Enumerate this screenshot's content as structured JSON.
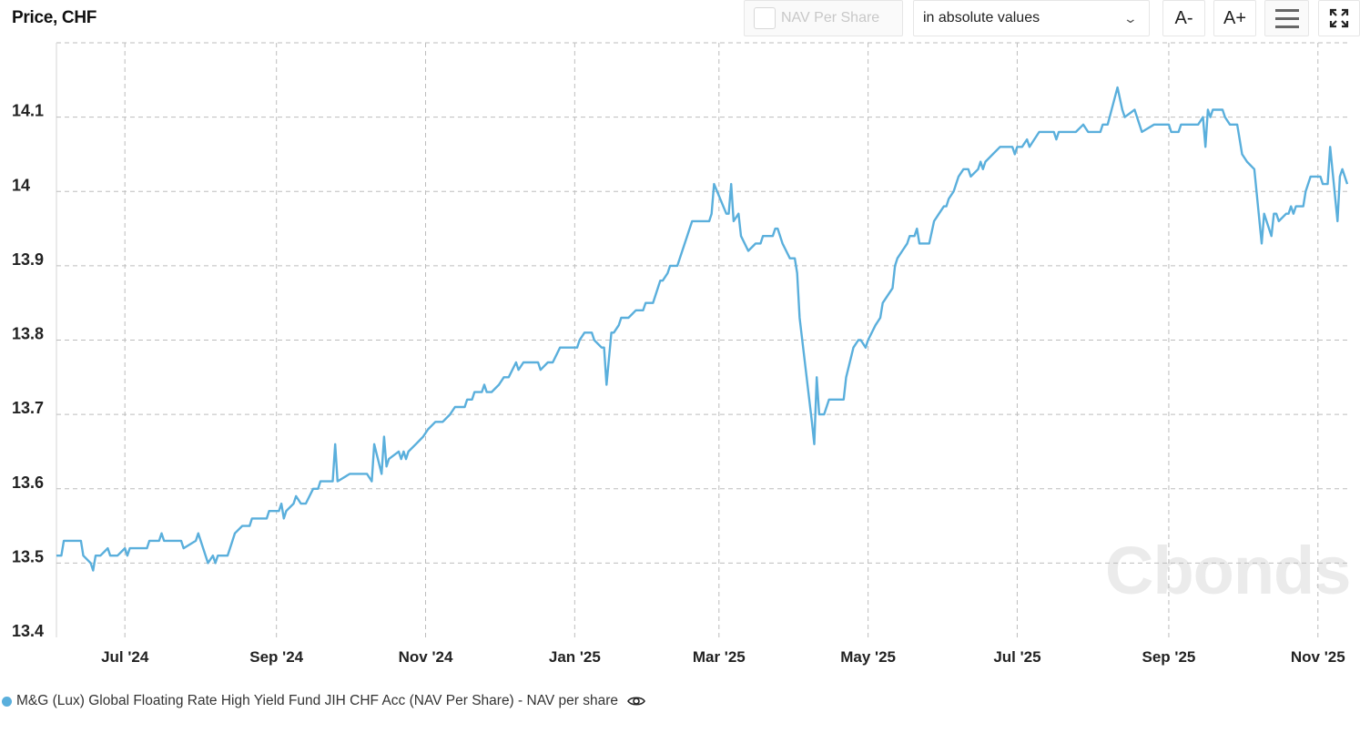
{
  "header": {
    "title": "Price, CHF"
  },
  "toolbar": {
    "nav_checkbox_label": "NAV Per Share",
    "nav_checked": false,
    "mode_select": "in absolute values",
    "font_decrease": "A-",
    "font_increase": "A+",
    "menu_icon": "hamburger-menu-icon",
    "fullscreen_icon": "fullscreen-icon"
  },
  "watermark": "Cbonds",
  "legend": {
    "series_label": "M&G (Lux) Global Floating Rate High Yield Fund JIH CHF Acc (NAV Per Share) - NAV per share",
    "visibility_icon": "eye-icon"
  },
  "colors": {
    "series": "#5aafdc",
    "grid": "#bdbdbd",
    "watermark": "#ebebeb"
  },
  "chart_data": {
    "type": "line",
    "title": "",
    "ylabel": "Price, CHF",
    "xlim": [
      "2024-06-03",
      "2025-11-13"
    ],
    "ylim": [
      13.4,
      14.2
    ],
    "grid": true,
    "legend_position": "bottom-left",
    "yticks": [
      13.4,
      13.5,
      13.6,
      13.7,
      13.8,
      13.9,
      14,
      14.1
    ],
    "ytick_labels": [
      "13.4",
      "13.5",
      "13.6",
      "13.7",
      "13.8",
      "13.9",
      "14",
      "14.1"
    ],
    "xticks": [
      "2024-07-01",
      "2024-09-01",
      "2024-11-01",
      "2025-01-01",
      "2025-03-01",
      "2025-05-01",
      "2025-07-01",
      "2025-09-01",
      "2025-11-01"
    ],
    "xtick_labels": [
      "Jul '24",
      "Sep '24",
      "Nov '24",
      "Jan '25",
      "Mar '25",
      "May '25",
      "Jul '25",
      "Sep '25",
      "Nov '25"
    ],
    "series": [
      {
        "name": "M&G (Lux) Global Floating Rate High Yield Fund JIH CHF Acc (NAV Per Share) - NAV per share",
        "points": [
          [
            "2024-06-03",
            13.51
          ],
          [
            "2024-06-05",
            13.51
          ],
          [
            "2024-06-06",
            13.53
          ],
          [
            "2024-06-13",
            13.53
          ],
          [
            "2024-06-14",
            13.51
          ],
          [
            "2024-06-17",
            13.5
          ],
          [
            "2024-06-18",
            13.49
          ],
          [
            "2024-06-19",
            13.51
          ],
          [
            "2024-06-21",
            13.51
          ],
          [
            "2024-06-24",
            13.52
          ],
          [
            "2024-06-25",
            13.51
          ],
          [
            "2024-06-28",
            13.51
          ],
          [
            "2024-07-01",
            13.52
          ],
          [
            "2024-07-02",
            13.51
          ],
          [
            "2024-07-03",
            13.52
          ],
          [
            "2024-07-10",
            13.52
          ],
          [
            "2024-07-11",
            13.53
          ],
          [
            "2024-07-15",
            13.53
          ],
          [
            "2024-07-16",
            13.54
          ],
          [
            "2024-07-17",
            13.53
          ],
          [
            "2024-07-24",
            13.53
          ],
          [
            "2024-07-25",
            13.52
          ],
          [
            "2024-07-30",
            13.53
          ],
          [
            "2024-07-31",
            13.54
          ],
          [
            "2024-08-04",
            13.5
          ],
          [
            "2024-08-06",
            13.51
          ],
          [
            "2024-08-07",
            13.5
          ],
          [
            "2024-08-08",
            13.51
          ],
          [
            "2024-08-12",
            13.51
          ],
          [
            "2024-08-13",
            13.52
          ],
          [
            "2024-08-15",
            13.54
          ],
          [
            "2024-08-18",
            13.55
          ],
          [
            "2024-08-21",
            13.55
          ],
          [
            "2024-08-22",
            13.56
          ],
          [
            "2024-08-28",
            13.56
          ],
          [
            "2024-08-29",
            13.57
          ],
          [
            "2024-09-02",
            13.57
          ],
          [
            "2024-09-03",
            13.58
          ],
          [
            "2024-09-04",
            13.56
          ],
          [
            "2024-09-05",
            13.57
          ],
          [
            "2024-09-08",
            13.58
          ],
          [
            "2024-09-09",
            13.59
          ],
          [
            "2024-09-11",
            13.58
          ],
          [
            "2024-09-13",
            13.58
          ],
          [
            "2024-09-16",
            13.6
          ],
          [
            "2024-09-18",
            13.6
          ],
          [
            "2024-09-19",
            13.61
          ],
          [
            "2024-09-24",
            13.61
          ],
          [
            "2024-09-25",
            13.66
          ],
          [
            "2024-09-26",
            13.61
          ],
          [
            "2024-10-01",
            13.62
          ],
          [
            "2024-10-08",
            13.62
          ],
          [
            "2024-10-10",
            13.61
          ],
          [
            "2024-10-11",
            13.66
          ],
          [
            "2024-10-14",
            13.62
          ],
          [
            "2024-10-15",
            13.67
          ],
          [
            "2024-10-16",
            13.63
          ],
          [
            "2024-10-17",
            13.64
          ],
          [
            "2024-10-21",
            13.65
          ],
          [
            "2024-10-22",
            13.64
          ],
          [
            "2024-10-23",
            13.65
          ],
          [
            "2024-10-24",
            13.64
          ],
          [
            "2024-10-25",
            13.65
          ],
          [
            "2024-10-28",
            13.66
          ],
          [
            "2024-10-31",
            13.67
          ],
          [
            "2024-11-02",
            13.68
          ],
          [
            "2024-11-05",
            13.69
          ],
          [
            "2024-11-08",
            13.69
          ],
          [
            "2024-11-11",
            13.7
          ],
          [
            "2024-11-13",
            13.71
          ],
          [
            "2024-11-17",
            13.71
          ],
          [
            "2024-11-18",
            13.72
          ],
          [
            "2024-11-20",
            13.72
          ],
          [
            "2024-11-21",
            13.73
          ],
          [
            "2024-11-24",
            13.73
          ],
          [
            "2024-11-25",
            13.74
          ],
          [
            "2024-11-26",
            13.73
          ],
          [
            "2024-11-28",
            13.73
          ],
          [
            "2024-12-01",
            13.74
          ],
          [
            "2024-12-03",
            13.75
          ],
          [
            "2024-12-05",
            13.75
          ],
          [
            "2024-12-08",
            13.77
          ],
          [
            "2024-12-09",
            13.76
          ],
          [
            "2024-12-11",
            13.77
          ],
          [
            "2024-12-17",
            13.77
          ],
          [
            "2024-12-18",
            13.76
          ],
          [
            "2024-12-21",
            13.77
          ],
          [
            "2024-12-23",
            13.77
          ],
          [
            "2024-12-26",
            13.79
          ],
          [
            "2025-01-02",
            13.79
          ],
          [
            "2025-01-03",
            13.8
          ],
          [
            "2025-01-05",
            13.81
          ],
          [
            "2025-01-08",
            13.81
          ],
          [
            "2025-01-09",
            13.8
          ],
          [
            "2025-01-12",
            13.79
          ],
          [
            "2025-01-13",
            13.79
          ],
          [
            "2025-01-14",
            13.74
          ],
          [
            "2025-01-16",
            13.81
          ],
          [
            "2025-01-17",
            13.81
          ],
          [
            "2025-01-19",
            13.82
          ],
          [
            "2025-01-20",
            13.83
          ],
          [
            "2025-01-23",
            13.83
          ],
          [
            "2025-01-26",
            13.84
          ],
          [
            "2025-01-29",
            13.84
          ],
          [
            "2025-01-30",
            13.85
          ],
          [
            "2025-02-02",
            13.85
          ],
          [
            "2025-02-05",
            13.88
          ],
          [
            "2025-02-06",
            13.88
          ],
          [
            "2025-02-08",
            13.89
          ],
          [
            "2025-02-09",
            13.9
          ],
          [
            "2025-02-12",
            13.9
          ],
          [
            "2025-02-14",
            13.92
          ],
          [
            "2025-02-16",
            13.94
          ],
          [
            "2025-02-18",
            13.96
          ],
          [
            "2025-02-25",
            13.96
          ],
          [
            "2025-02-26",
            13.97
          ],
          [
            "2025-02-27",
            14.01
          ],
          [
            "2025-03-04",
            13.97
          ],
          [
            "2025-03-05",
            13.97
          ],
          [
            "2025-03-06",
            14.01
          ],
          [
            "2025-03-07",
            13.96
          ],
          [
            "2025-03-09",
            13.97
          ],
          [
            "2025-03-10",
            13.94
          ],
          [
            "2025-03-13",
            13.92
          ],
          [
            "2025-03-16",
            13.93
          ],
          [
            "2025-03-18",
            13.93
          ],
          [
            "2025-03-19",
            13.94
          ],
          [
            "2025-03-23",
            13.94
          ],
          [
            "2025-03-24",
            13.95
          ],
          [
            "2025-03-25",
            13.95
          ],
          [
            "2025-03-27",
            13.93
          ],
          [
            "2025-03-30",
            13.91
          ],
          [
            "2025-04-01",
            13.91
          ],
          [
            "2025-04-02",
            13.89
          ],
          [
            "2025-04-03",
            13.83
          ],
          [
            "2025-04-08",
            13.69
          ],
          [
            "2025-04-09",
            13.66
          ],
          [
            "2025-04-10",
            13.75
          ],
          [
            "2025-04-11",
            13.7
          ],
          [
            "2025-04-13",
            13.7
          ],
          [
            "2025-04-15",
            13.72
          ],
          [
            "2025-04-21",
            13.72
          ],
          [
            "2025-04-22",
            13.75
          ],
          [
            "2025-04-25",
            13.79
          ],
          [
            "2025-04-27",
            13.8
          ],
          [
            "2025-04-28",
            13.8
          ],
          [
            "2025-04-30",
            13.79
          ],
          [
            "2025-05-01",
            13.8
          ],
          [
            "2025-05-04",
            13.82
          ],
          [
            "2025-05-06",
            13.83
          ],
          [
            "2025-05-07",
            13.85
          ],
          [
            "2025-05-11",
            13.87
          ],
          [
            "2025-05-12",
            13.9
          ],
          [
            "2025-05-13",
            13.91
          ],
          [
            "2025-05-15",
            13.92
          ],
          [
            "2025-05-17",
            13.93
          ],
          [
            "2025-05-18",
            13.94
          ],
          [
            "2025-05-20",
            13.94
          ],
          [
            "2025-05-21",
            13.95
          ],
          [
            "2025-05-22",
            13.93
          ],
          [
            "2025-05-26",
            13.93
          ],
          [
            "2025-05-28",
            13.96
          ],
          [
            "2025-05-30",
            13.97
          ],
          [
            "2025-06-01",
            13.98
          ],
          [
            "2025-06-02",
            13.98
          ],
          [
            "2025-06-03",
            13.99
          ],
          [
            "2025-06-05",
            14.0
          ],
          [
            "2025-06-07",
            14.02
          ],
          [
            "2025-06-09",
            14.03
          ],
          [
            "2025-06-11",
            14.03
          ],
          [
            "2025-06-12",
            14.02
          ],
          [
            "2025-06-15",
            14.03
          ],
          [
            "2025-06-16",
            14.04
          ],
          [
            "2025-06-17",
            14.03
          ],
          [
            "2025-06-18",
            14.04
          ],
          [
            "2025-06-21",
            14.05
          ],
          [
            "2025-06-24",
            14.06
          ],
          [
            "2025-06-29",
            14.06
          ],
          [
            "2025-06-30",
            14.05
          ],
          [
            "2025-07-01",
            14.06
          ],
          [
            "2025-07-03",
            14.06
          ],
          [
            "2025-07-05",
            14.07
          ],
          [
            "2025-07-06",
            14.06
          ],
          [
            "2025-07-08",
            14.07
          ],
          [
            "2025-07-10",
            14.08
          ],
          [
            "2025-07-16",
            14.08
          ],
          [
            "2025-07-17",
            14.07
          ],
          [
            "2025-07-18",
            14.08
          ],
          [
            "2025-07-25",
            14.08
          ],
          [
            "2025-07-28",
            14.09
          ],
          [
            "2025-07-30",
            14.08
          ],
          [
            "2025-08-04",
            14.08
          ],
          [
            "2025-08-05",
            14.09
          ],
          [
            "2025-08-07",
            14.09
          ],
          [
            "2025-08-11",
            14.14
          ],
          [
            "2025-08-13",
            14.11
          ],
          [
            "2025-08-14",
            14.1
          ],
          [
            "2025-08-18",
            14.11
          ],
          [
            "2025-08-21",
            14.08
          ],
          [
            "2025-08-26",
            14.09
          ],
          [
            "2025-09-01",
            14.09
          ],
          [
            "2025-09-02",
            14.08
          ],
          [
            "2025-09-05",
            14.08
          ],
          [
            "2025-09-06",
            14.09
          ],
          [
            "2025-09-13",
            14.09
          ],
          [
            "2025-09-15",
            14.1
          ],
          [
            "2025-09-16",
            14.06
          ],
          [
            "2025-09-17",
            14.11
          ],
          [
            "2025-09-18",
            14.1
          ],
          [
            "2025-09-19",
            14.11
          ],
          [
            "2025-09-23",
            14.11
          ],
          [
            "2025-09-24",
            14.1
          ],
          [
            "2025-09-26",
            14.09
          ],
          [
            "2025-09-29",
            14.09
          ],
          [
            "2025-09-30",
            14.07
          ],
          [
            "2025-10-01",
            14.05
          ],
          [
            "2025-10-03",
            14.04
          ],
          [
            "2025-10-06",
            14.03
          ],
          [
            "2025-10-09",
            13.93
          ],
          [
            "2025-10-10",
            13.97
          ],
          [
            "2025-10-13",
            13.94
          ],
          [
            "2025-10-14",
            13.97
          ],
          [
            "2025-10-15",
            13.97
          ],
          [
            "2025-10-16",
            13.96
          ],
          [
            "2025-10-19",
            13.97
          ],
          [
            "2025-10-20",
            13.97
          ],
          [
            "2025-10-21",
            13.98
          ],
          [
            "2025-10-22",
            13.97
          ],
          [
            "2025-10-23",
            13.98
          ],
          [
            "2025-10-26",
            13.98
          ],
          [
            "2025-10-27",
            14.0
          ],
          [
            "2025-10-29",
            14.02
          ],
          [
            "2025-11-02",
            14.02
          ],
          [
            "2025-11-03",
            14.01
          ],
          [
            "2025-11-05",
            14.01
          ],
          [
            "2025-11-06",
            14.06
          ],
          [
            "2025-11-09",
            13.96
          ],
          [
            "2025-11-10",
            14.02
          ],
          [
            "2025-11-11",
            14.03
          ],
          [
            "2025-11-13",
            14.01
          ]
        ]
      }
    ]
  }
}
